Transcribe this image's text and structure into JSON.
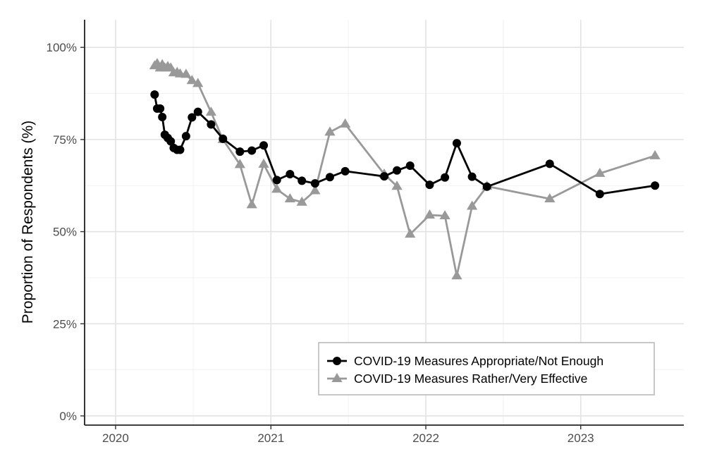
{
  "chart_data": {
    "type": "line",
    "title": "",
    "xlabel": "",
    "ylabel": "Proportion of Respondents (%)",
    "xlim": [
      "2019-10-20",
      "2023-09-01"
    ],
    "ylim": [
      -2.5,
      107.5
    ],
    "x_ticks": [
      {
        "x": "2020-01-01",
        "label": "2020"
      },
      {
        "x": "2021-01-01",
        "label": "2021"
      },
      {
        "x": "2022-01-01",
        "label": "2022"
      },
      {
        "x": "2023-01-01",
        "label": "2023"
      }
    ],
    "y_ticks": [
      {
        "y": 0,
        "label": "0%"
      },
      {
        "y": 25,
        "label": "25%"
      },
      {
        "y": 50,
        "label": "50%"
      },
      {
        "y": 75,
        "label": "75%"
      },
      {
        "y": 100,
        "label": "100%"
      }
    ],
    "grid": true,
    "legend_position": "bottom-right",
    "series": [
      {
        "name": "COVID-19 Measures Appropriate/Not Enough",
        "color": "#000000",
        "marker": "circle",
        "points": [
          {
            "x": "2020-04-02",
            "y": 87.2
          },
          {
            "x": "2020-04-08",
            "y": 83.4
          },
          {
            "x": "2020-04-15",
            "y": 83.4
          },
          {
            "x": "2020-04-20",
            "y": 81.1
          },
          {
            "x": "2020-04-26",
            "y": 76.3
          },
          {
            "x": "2020-05-03",
            "y": 75.4
          },
          {
            "x": "2020-05-10",
            "y": 74.5
          },
          {
            "x": "2020-05-17",
            "y": 72.7
          },
          {
            "x": "2020-05-25",
            "y": 72.2
          },
          {
            "x": "2020-06-01",
            "y": 72.2
          },
          {
            "x": "2020-06-15",
            "y": 75.9
          },
          {
            "x": "2020-06-29",
            "y": 81.0
          },
          {
            "x": "2020-07-13",
            "y": 82.5
          },
          {
            "x": "2020-08-13",
            "y": 79.1
          },
          {
            "x": "2020-09-10",
            "y": 75.2
          },
          {
            "x": "2020-10-20",
            "y": 71.7
          },
          {
            "x": "2020-11-17",
            "y": 72.0
          },
          {
            "x": "2020-12-15",
            "y": 73.4
          },
          {
            "x": "2021-01-15",
            "y": 64.0
          },
          {
            "x": "2021-02-15",
            "y": 65.6
          },
          {
            "x": "2021-03-15",
            "y": 63.8
          },
          {
            "x": "2021-04-15",
            "y": 63.1
          },
          {
            "x": "2021-05-20",
            "y": 64.8
          },
          {
            "x": "2021-06-25",
            "y": 66.4
          },
          {
            "x": "2021-09-25",
            "y": 65.0
          },
          {
            "x": "2021-10-25",
            "y": 66.6
          },
          {
            "x": "2021-11-25",
            "y": 67.9
          },
          {
            "x": "2022-01-10",
            "y": 62.7
          },
          {
            "x": "2022-02-15",
            "y": 64.7
          },
          {
            "x": "2022-03-15",
            "y": 74.0
          },
          {
            "x": "2022-04-20",
            "y": 64.9
          },
          {
            "x": "2022-05-25",
            "y": 62.2
          },
          {
            "x": "2022-10-20",
            "y": 68.4
          },
          {
            "x": "2023-02-15",
            "y": 60.2
          },
          {
            "x": "2023-06-25",
            "y": 62.5
          }
        ]
      },
      {
        "name": "COVID-19 Measures Rather/Very Effective",
        "color": "#999999",
        "marker": "triangle",
        "points": [
          {
            "x": "2020-04-02",
            "y": 95.0
          },
          {
            "x": "2020-04-08",
            "y": 95.6
          },
          {
            "x": "2020-04-15",
            "y": 94.4
          },
          {
            "x": "2020-04-20",
            "y": 95.3
          },
          {
            "x": "2020-04-26",
            "y": 94.4
          },
          {
            "x": "2020-05-03",
            "y": 94.8
          },
          {
            "x": "2020-05-10",
            "y": 94.4
          },
          {
            "x": "2020-05-17",
            "y": 93.1
          },
          {
            "x": "2020-05-25",
            "y": 93.2
          },
          {
            "x": "2020-06-01",
            "y": 92.8
          },
          {
            "x": "2020-06-15",
            "y": 92.7
          },
          {
            "x": "2020-06-29",
            "y": 91.0
          },
          {
            "x": "2020-07-13",
            "y": 90.2
          },
          {
            "x": "2020-08-13",
            "y": 82.4
          },
          {
            "x": "2020-09-10",
            "y": 75.0
          },
          {
            "x": "2020-10-20",
            "y": 68.2
          },
          {
            "x": "2020-11-17",
            "y": 57.3
          },
          {
            "x": "2020-12-15",
            "y": 68.3
          },
          {
            "x": "2021-01-15",
            "y": 61.5
          },
          {
            "x": "2021-02-15",
            "y": 58.9
          },
          {
            "x": "2021-03-15",
            "y": 58.0
          },
          {
            "x": "2021-04-15",
            "y": 61.1
          },
          {
            "x": "2021-05-20",
            "y": 77.0
          },
          {
            "x": "2021-06-25",
            "y": 79.2
          },
          {
            "x": "2021-09-25",
            "y": 65.6
          },
          {
            "x": "2021-10-25",
            "y": 62.3
          },
          {
            "x": "2021-11-25",
            "y": 49.3
          },
          {
            "x": "2022-01-10",
            "y": 54.5
          },
          {
            "x": "2022-02-15",
            "y": 54.3
          },
          {
            "x": "2022-03-15",
            "y": 38.0
          },
          {
            "x": "2022-04-20",
            "y": 56.9
          },
          {
            "x": "2022-05-25",
            "y": 62.3
          },
          {
            "x": "2022-10-20",
            "y": 58.9
          },
          {
            "x": "2023-02-15",
            "y": 65.8
          },
          {
            "x": "2023-06-25",
            "y": 70.6
          }
        ]
      }
    ]
  }
}
